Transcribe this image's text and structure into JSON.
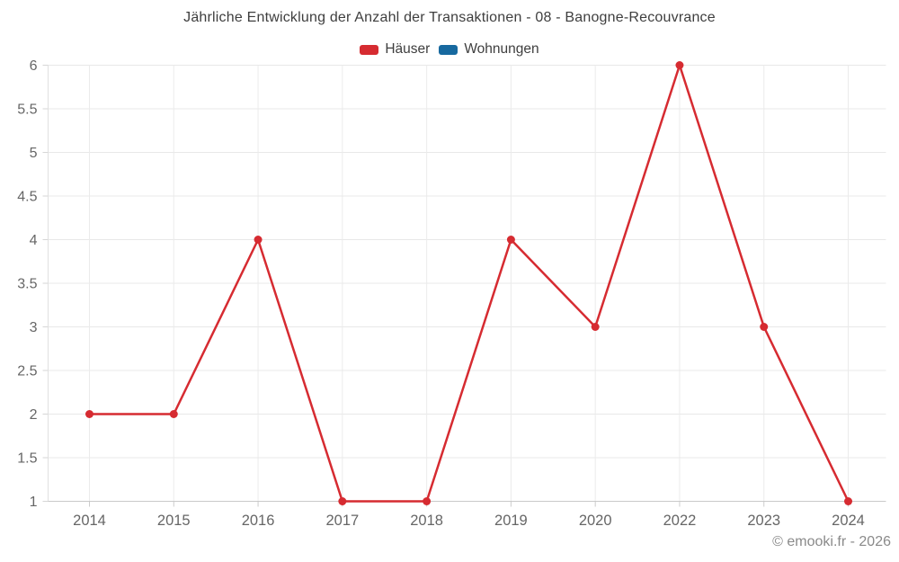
{
  "title": "Jährliche Entwicklung der Anzahl der Transaktionen - 08 - Banogne-Recouvrance",
  "legend": {
    "items": [
      {
        "label": "Häuser",
        "color": "#d62b31"
      },
      {
        "label": "Wohnungen",
        "color": "#17699f"
      }
    ]
  },
  "footer": {
    "text": "© emooki.fr - 2026"
  },
  "chart_data": {
    "type": "line",
    "title": "Jährliche Entwicklung der Anzahl der Transaktionen - 08 - Banogne-Recouvrance",
    "categories": [
      "2014",
      "2015",
      "2016",
      "2017",
      "2018",
      "2019",
      "2020",
      "2022",
      "2023",
      "2024"
    ],
    "series": [
      {
        "name": "Häuser",
        "color": "#d62b31",
        "values": [
          2,
          2,
          4,
          1,
          1,
          4,
          3,
          6,
          3,
          1
        ]
      },
      {
        "name": "Wohnungen",
        "color": "#17699f",
        "values": []
      }
    ],
    "xlabel": "",
    "ylabel": "",
    "ylim": [
      1,
      6
    ],
    "ytick_step": 0.5,
    "yticklabels": [
      "1",
      "1.5",
      "2",
      "2.5",
      "3",
      "3.5",
      "4",
      "4.5",
      "5",
      "5.5",
      "6"
    ],
    "grid": true,
    "legend_position": "top",
    "marker": "circle",
    "note_missing_category": "2021"
  }
}
